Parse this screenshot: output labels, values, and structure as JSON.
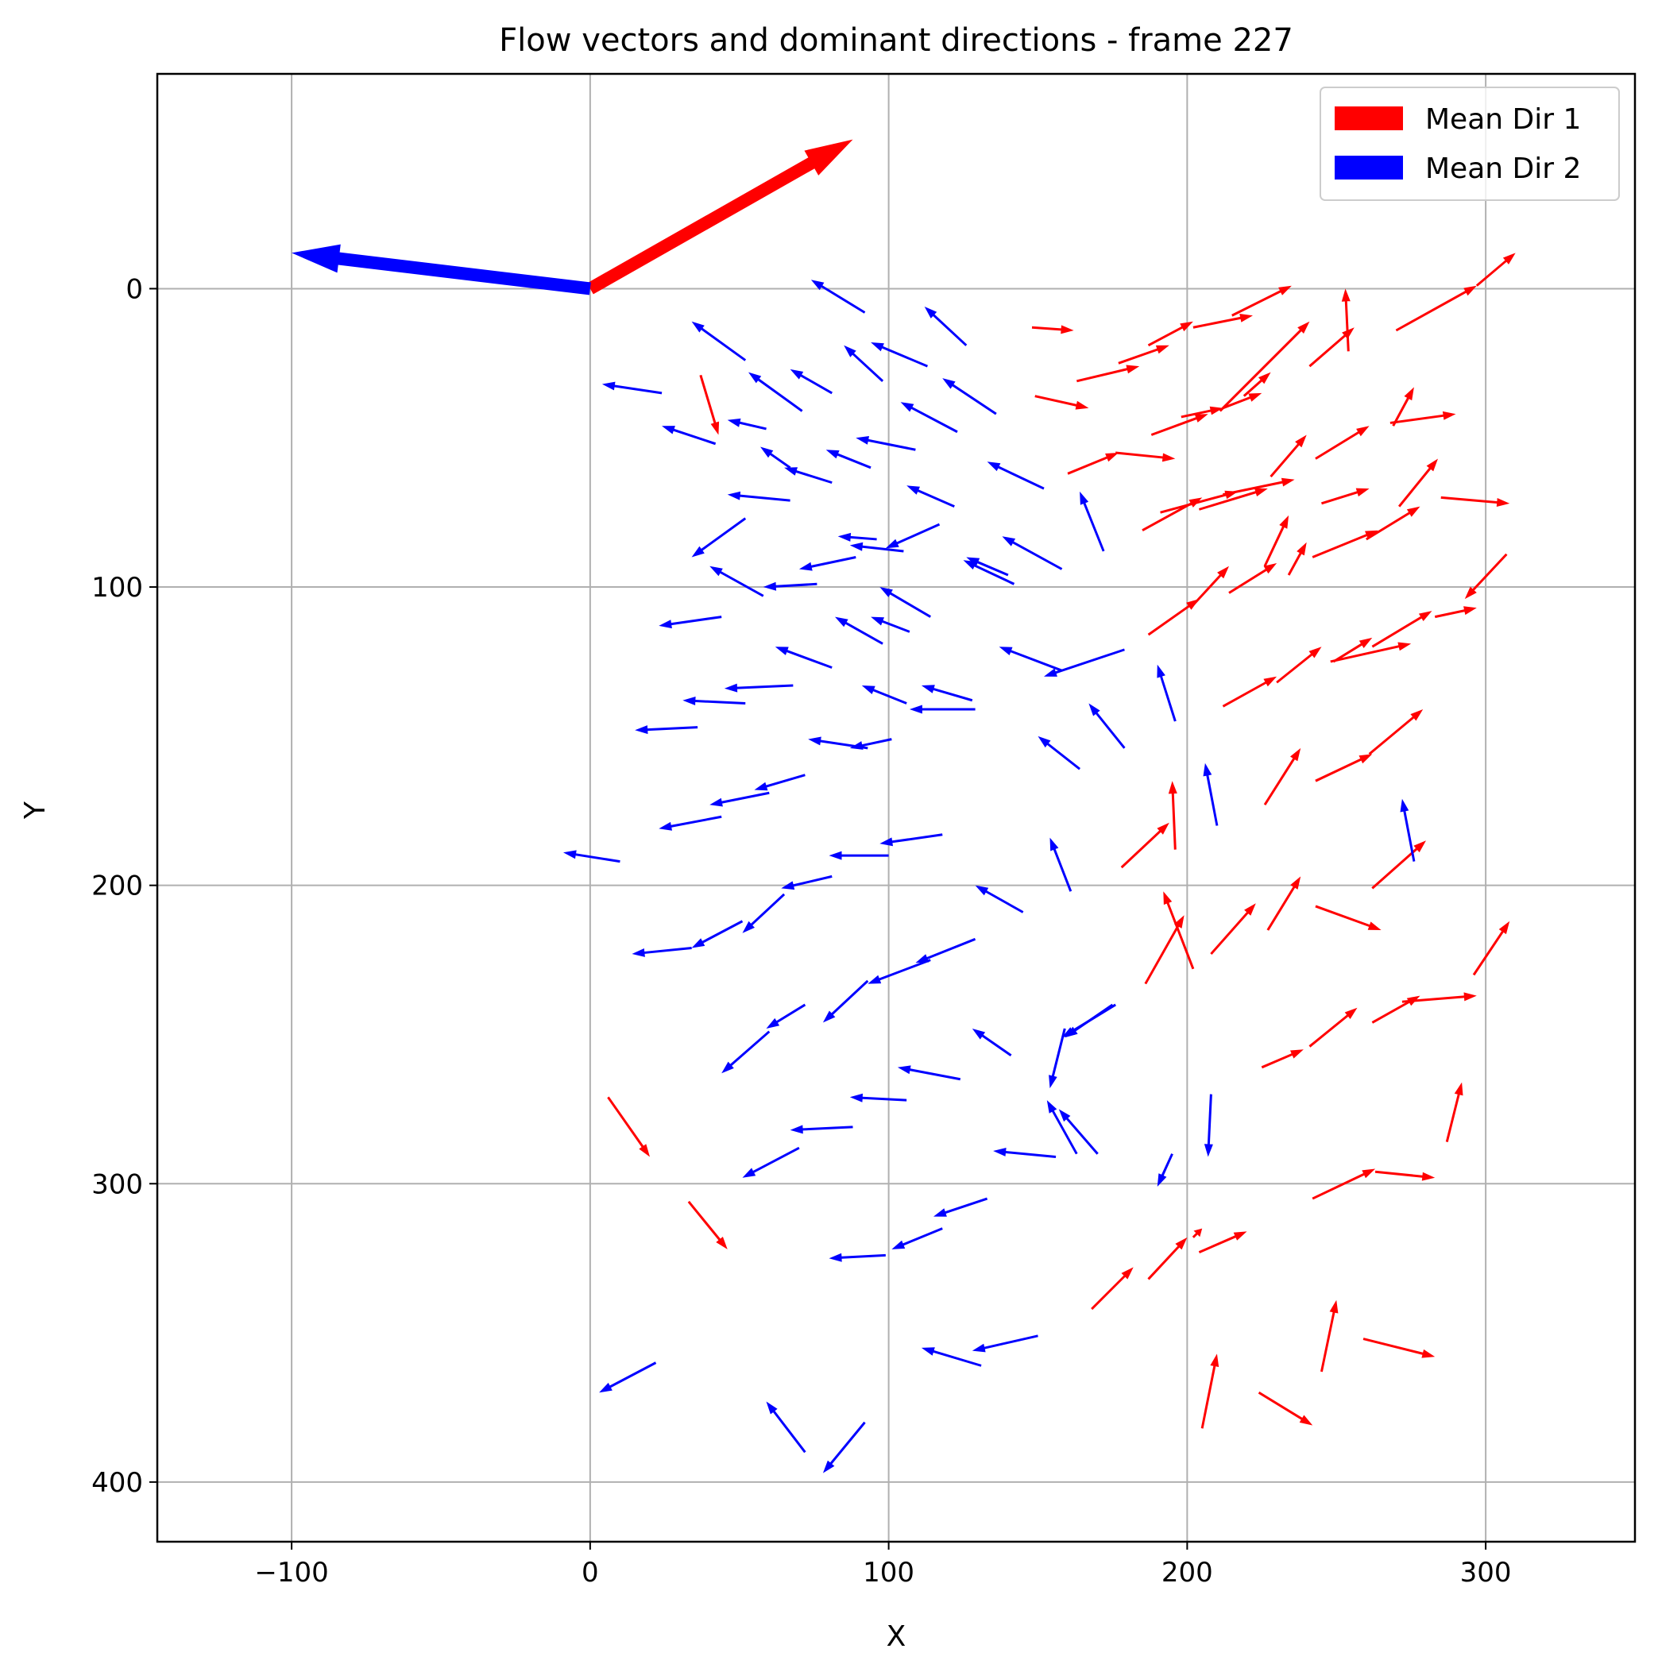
{
  "chart_data": {
    "type": "quiver",
    "title": "Flow vectors and dominant directions - frame 227",
    "xlabel": "X",
    "ylabel": "Y",
    "xlim": [
      -145,
      350
    ],
    "ylim": [
      -72,
      420
    ],
    "y_inverted": true,
    "grid": true,
    "xticks": [
      -100,
      0,
      100,
      200,
      300
    ],
    "yticks": [
      0,
      100,
      200,
      300,
      400
    ],
    "xtick_labels": [
      "−100",
      "0",
      "100",
      "200",
      "300"
    ],
    "ytick_labels": [
      "0",
      "100",
      "200",
      "300",
      "400"
    ],
    "legend": {
      "placement": "top-right",
      "entries": [
        {
          "label": "Mean Dir 1",
          "color": "#ff0000"
        },
        {
          "label": "Mean Dir 2",
          "color": "#0000ff"
        }
      ]
    },
    "mean_directions": [
      {
        "name": "Mean Dir 1",
        "color": "#ff0000",
        "x0": 0,
        "y0": 0,
        "x1": 88,
        "y1": -50
      },
      {
        "name": "Mean Dir 2",
        "color": "#0000ff",
        "x0": 0,
        "y0": 0,
        "x1": -100,
        "y1": -12
      }
    ],
    "series": [
      {
        "name": "Mean Dir 1",
        "color": "#ff0000",
        "vectors": [
          [
            148,
            13,
            162,
            14
          ],
          [
            215,
            9,
            235,
            -1
          ],
          [
            254,
            21,
            253,
            0
          ],
          [
            270,
            14,
            297,
            -1
          ],
          [
            297,
            -1,
            310,
            -12
          ],
          [
            202,
            13,
            222,
            9
          ],
          [
            187,
            19,
            202,
            11
          ],
          [
            177,
            25,
            194,
            19
          ],
          [
            163,
            31,
            184,
            26
          ],
          [
            149,
            36,
            167,
            40
          ],
          [
            211,
            41,
            241,
            11
          ],
          [
            241,
            26,
            256,
            13
          ],
          [
            212,
            40,
            225,
            35
          ],
          [
            219,
            36,
            228,
            28
          ],
          [
            37,
            29,
            43,
            49
          ],
          [
            198,
            43,
            212,
            40
          ],
          [
            188,
            49,
            207,
            42
          ],
          [
            268,
            45,
            290,
            42
          ],
          [
            160,
            62,
            177,
            55
          ],
          [
            176,
            55,
            196,
            57
          ],
          [
            243,
            57,
            261,
            46
          ],
          [
            228,
            63,
            240,
            49
          ],
          [
            269,
            46,
            276,
            33
          ],
          [
            204,
            74,
            227,
            67
          ],
          [
            212,
            69,
            236,
            64
          ],
          [
            245,
            72,
            261,
            67
          ],
          [
            271,
            73,
            284,
            57
          ],
          [
            285,
            70,
            308,
            72
          ],
          [
            185,
            81,
            205,
            70
          ],
          [
            191,
            75,
            217,
            68
          ],
          [
            242,
            90,
            264,
            81
          ],
          [
            260,
            84,
            278,
            73
          ],
          [
            226,
            93,
            234,
            76
          ],
          [
            214,
            102,
            230,
            92
          ],
          [
            234,
            96,
            240,
            85
          ],
          [
            307,
            89,
            293,
            104
          ],
          [
            187,
            116,
            204,
            104
          ],
          [
            202,
            106,
            214,
            93
          ],
          [
            283,
            110,
            297,
            107
          ],
          [
            262,
            120,
            282,
            108
          ],
          [
            248,
            125,
            275,
            119
          ],
          [
            249,
            125,
            262,
            117
          ],
          [
            230,
            132,
            245,
            120
          ],
          [
            212,
            140,
            230,
            130
          ],
          [
            196,
            188,
            195,
            165
          ],
          [
            226,
            173,
            238,
            154
          ],
          [
            243,
            165,
            262,
            156
          ],
          [
            261,
            156,
            279,
            141
          ],
          [
            178,
            194,
            194,
            179
          ],
          [
            202,
            228,
            192,
            202
          ],
          [
            262,
            201,
            280,
            185
          ],
          [
            243,
            207,
            265,
            215
          ],
          [
            227,
            215,
            238,
            197
          ],
          [
            208,
            223,
            223,
            206
          ],
          [
            296,
            230,
            308,
            212
          ],
          [
            186,
            233,
            199,
            210
          ],
          [
            225,
            261,
            239,
            255
          ],
          [
            241,
            254,
            257,
            241
          ],
          [
            262,
            246,
            278,
            237
          ],
          [
            272,
            239,
            297,
            237
          ],
          [
            287,
            286,
            292,
            266
          ],
          [
            263,
            296,
            283,
            298
          ],
          [
            242,
            305,
            263,
            295
          ],
          [
            6,
            271,
            20,
            291
          ],
          [
            33,
            306,
            46,
            322
          ],
          [
            204,
            323,
            220,
            316
          ],
          [
            202,
            318,
            205,
            315
          ],
          [
            187,
            332,
            200,
            318
          ],
          [
            168,
            342,
            182,
            328
          ],
          [
            245,
            363,
            250,
            339
          ],
          [
            259,
            352,
            283,
            358
          ],
          [
            205,
            382,
            210,
            357
          ],
          [
            224,
            370,
            242,
            381
          ]
        ]
      },
      {
        "name": "Mean Dir 2",
        "color": "#0000ff",
        "vectors": [
          [
            92,
            8,
            74,
            -3
          ],
          [
            126,
            19,
            112,
            6
          ],
          [
            52,
            24,
            34,
            11
          ],
          [
            98,
            31,
            85,
            19
          ],
          [
            113,
            26,
            94,
            18
          ],
          [
            24,
            35,
            4,
            32
          ],
          [
            136,
            42,
            118,
            30
          ],
          [
            71,
            41,
            53,
            28
          ],
          [
            81,
            35,
            67,
            27
          ],
          [
            59,
            47,
            46,
            44
          ],
          [
            123,
            48,
            104,
            38
          ],
          [
            42,
            52,
            24,
            46
          ],
          [
            67,
            60,
            57,
            53
          ],
          [
            94,
            60,
            79,
            54
          ],
          [
            109,
            54,
            89,
            50
          ],
          [
            81,
            65,
            65,
            60
          ],
          [
            152,
            67,
            133,
            58
          ],
          [
            122,
            73,
            106,
            66
          ],
          [
            67,
            71,
            46,
            69
          ],
          [
            52,
            77,
            34,
            90
          ],
          [
            89,
            90,
            70,
            94
          ],
          [
            117,
            79,
            99,
            87
          ],
          [
            96,
            84,
            83,
            83
          ],
          [
            105,
            88,
            87,
            86
          ],
          [
            172,
            88,
            164,
            68
          ],
          [
            140,
            96,
            126,
            90
          ],
          [
            158,
            94,
            138,
            83
          ],
          [
            142,
            99,
            125,
            91
          ],
          [
            58,
            103,
            40,
            93
          ],
          [
            76,
            99,
            58,
            100
          ],
          [
            44,
            110,
            23,
            113
          ],
          [
            114,
            110,
            97,
            100
          ],
          [
            107,
            115,
            94,
            110
          ],
          [
            98,
            119,
            82,
            110
          ],
          [
            158,
            128,
            137,
            120
          ],
          [
            179,
            121,
            152,
            130
          ],
          [
            81,
            127,
            62,
            120
          ],
          [
            106,
            139,
            91,
            133
          ],
          [
            128,
            138,
            111,
            133
          ],
          [
            52,
            139,
            31,
            138
          ],
          [
            68,
            133,
            45,
            134
          ],
          [
            129,
            141,
            107,
            141
          ],
          [
            196,
            145,
            190,
            126
          ],
          [
            179,
            154,
            167,
            139
          ],
          [
            101,
            151,
            87,
            154
          ],
          [
            36,
            147,
            15,
            148
          ],
          [
            164,
            161,
            150,
            150
          ],
          [
            93,
            154,
            73,
            151
          ],
          [
            210,
            180,
            206,
            159
          ],
          [
            72,
            163,
            55,
            168
          ],
          [
            60,
            169,
            40,
            173
          ],
          [
            44,
            177,
            23,
            181
          ],
          [
            118,
            183,
            97,
            186
          ],
          [
            10,
            192,
            -9,
            189
          ],
          [
            100,
            190,
            80,
            190
          ],
          [
            276,
            192,
            272,
            171
          ],
          [
            161,
            202,
            154,
            184
          ],
          [
            81,
            197,
            64,
            201
          ],
          [
            145,
            209,
            129,
            200
          ],
          [
            65,
            203,
            51,
            216
          ],
          [
            51,
            212,
            34,
            221
          ],
          [
            34,
            221,
            14,
            223
          ],
          [
            129,
            218,
            109,
            226
          ],
          [
            114,
            225,
            93,
            233
          ],
          [
            175,
            240,
            159,
            251
          ],
          [
            93,
            232,
            78,
            246
          ],
          [
            176,
            240,
            158,
            251
          ],
          [
            72,
            240,
            59,
            248
          ],
          [
            60,
            249,
            44,
            263
          ],
          [
            141,
            257,
            128,
            248
          ],
          [
            159,
            248,
            154,
            268
          ],
          [
            124,
            265,
            103,
            261
          ],
          [
            163,
            290,
            153,
            272
          ],
          [
            170,
            290,
            157,
            275
          ],
          [
            195,
            290,
            190,
            301
          ],
          [
            208,
            270,
            207,
            291
          ],
          [
            106,
            272,
            87,
            271
          ],
          [
            88,
            281,
            67,
            282
          ],
          [
            70,
            288,
            51,
            298
          ],
          [
            156,
            291,
            135,
            289
          ],
          [
            133,
            305,
            115,
            311
          ],
          [
            118,
            315,
            101,
            322
          ],
          [
            99,
            324,
            80,
            325
          ],
          [
            150,
            351,
            128,
            356
          ],
          [
            131,
            361,
            111,
            355
          ],
          [
            22,
            360,
            3,
            370
          ],
          [
            72,
            390,
            59,
            373
          ],
          [
            92,
            380,
            78,
            397
          ]
        ]
      }
    ]
  }
}
